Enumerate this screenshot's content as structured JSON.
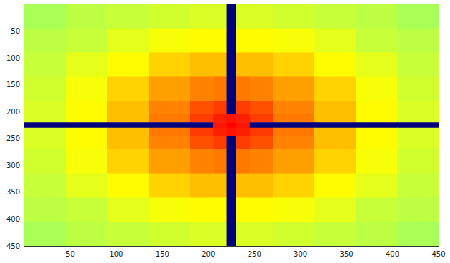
{
  "chart_data": {
    "type": "heatmap",
    "x_edges": [
      0,
      45,
      90,
      135,
      180,
      205,
      220,
      230,
      245,
      270,
      315,
      360,
      405,
      450
    ],
    "y_edges": [
      0,
      45,
      90,
      135,
      180,
      205,
      220,
      230,
      245,
      270,
      315,
      360,
      405,
      450
    ],
    "cells": [
      [
        58,
        60,
        61,
        62,
        63,
        63,
        3,
        63,
        63,
        62,
        61,
        60,
        58
      ],
      [
        60,
        61,
        64,
        66,
        67,
        67,
        3,
        67,
        67,
        66,
        64,
        61,
        60
      ],
      [
        61,
        64,
        67,
        71,
        73,
        73,
        3,
        73,
        73,
        71,
        67,
        64,
        61
      ],
      [
        62,
        66,
        71,
        76,
        79,
        80,
        3,
        80,
        79,
        76,
        71,
        66,
        62
      ],
      [
        63,
        67,
        73,
        79,
        84,
        86,
        3,
        86,
        84,
        79,
        73,
        67,
        63
      ],
      [
        63,
        67,
        73,
        80,
        86,
        89,
        90,
        89,
        86,
        80,
        73,
        67,
        63
      ],
      [
        3,
        3,
        3,
        3,
        3,
        90,
        92,
        90,
        3,
        3,
        3,
        3,
        3
      ],
      [
        63,
        67,
        73,
        80,
        86,
        89,
        90,
        89,
        86,
        80,
        73,
        67,
        63
      ],
      [
        63,
        67,
        73,
        79,
        84,
        86,
        3,
        86,
        84,
        79,
        73,
        67,
        63
      ],
      [
        62,
        66,
        71,
        76,
        79,
        80,
        3,
        80,
        79,
        76,
        71,
        66,
        62
      ],
      [
        61,
        64,
        67,
        71,
        73,
        73,
        3,
        73,
        73,
        71,
        67,
        64,
        61
      ],
      [
        60,
        61,
        64,
        66,
        67,
        67,
        3,
        67,
        67,
        66,
        64,
        61,
        60
      ],
      [
        58,
        60,
        61,
        62,
        63,
        63,
        3,
        63,
        63,
        62,
        61,
        60,
        58
      ]
    ],
    "xlim": [
      0,
      450
    ],
    "ylim": [
      450,
      0
    ],
    "xticks": [
      50,
      100,
      150,
      200,
      250,
      300,
      350,
      400,
      450
    ],
    "yticks": [
      50,
      100,
      150,
      200,
      250,
      300,
      350,
      400,
      450
    ]
  }
}
